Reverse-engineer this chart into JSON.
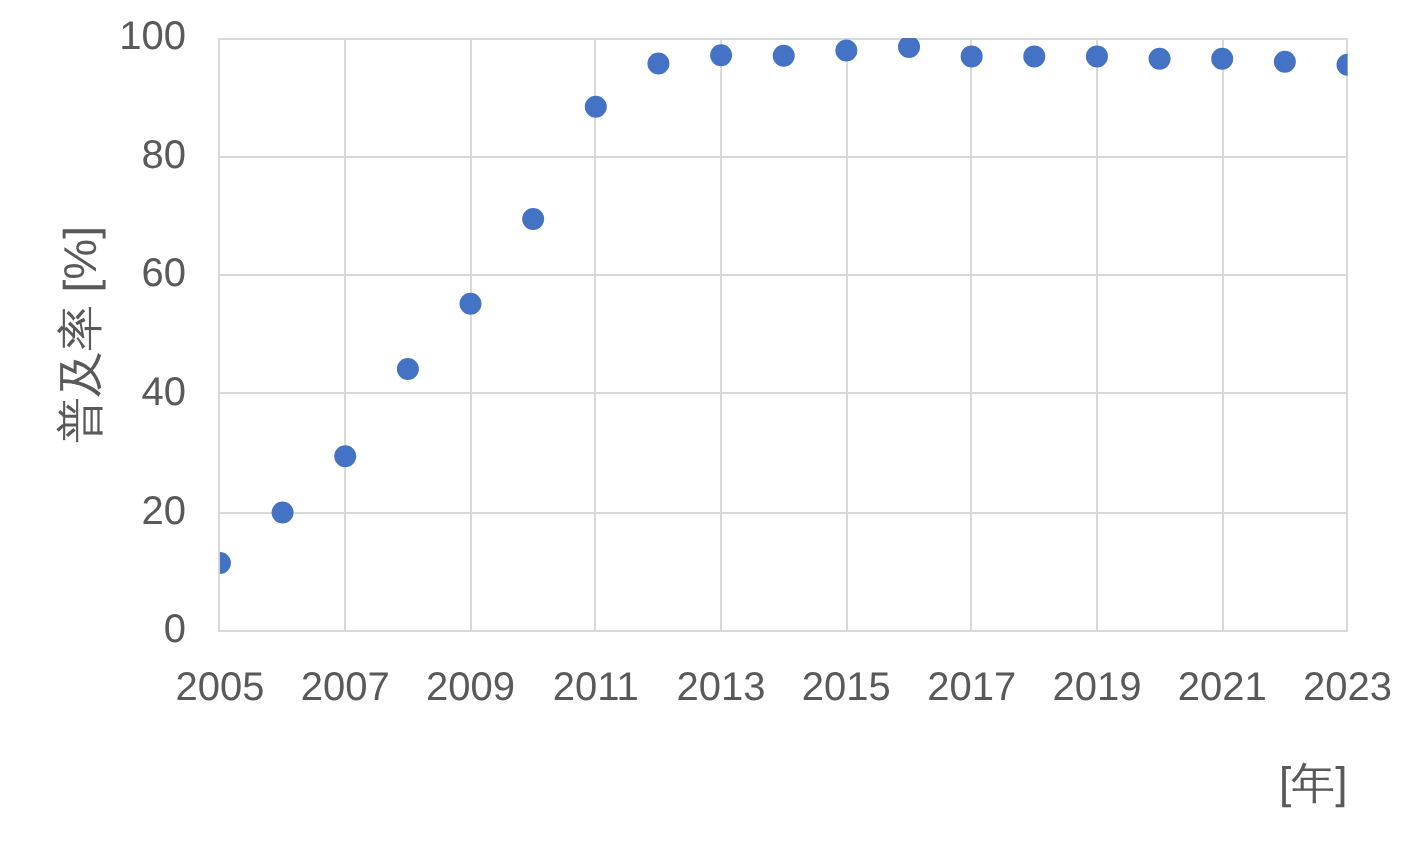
{
  "chart_data": {
    "type": "scatter",
    "xlabel": "[年]",
    "ylabel": "普及率 [%]",
    "x": [
      2005,
      2006,
      2007,
      2008,
      2009,
      2010,
      2011,
      2012,
      2013,
      2014,
      2015,
      2016,
      2017,
      2018,
      2019,
      2020,
      2021,
      2022,
      2023
    ],
    "series": [
      {
        "color": "#4472c4",
        "values": [
          11.5,
          20,
          29.5,
          44.2,
          55.2,
          69.5,
          88.4,
          95.7,
          97.1,
          97,
          97.9,
          98.5,
          96.9,
          96.9,
          96.9,
          96.5,
          96.5,
          96,
          95.5
        ]
      }
    ],
    "xlim": [
      2005,
      2023
    ],
    "ylim": [
      0,
      100
    ],
    "xticks": [
      2005,
      2007,
      2009,
      2011,
      2013,
      2015,
      2017,
      2019,
      2021,
      2023
    ],
    "yticks": [
      0,
      20,
      40,
      60,
      80,
      100
    ],
    "grid": true,
    "marker": "circle"
  }
}
